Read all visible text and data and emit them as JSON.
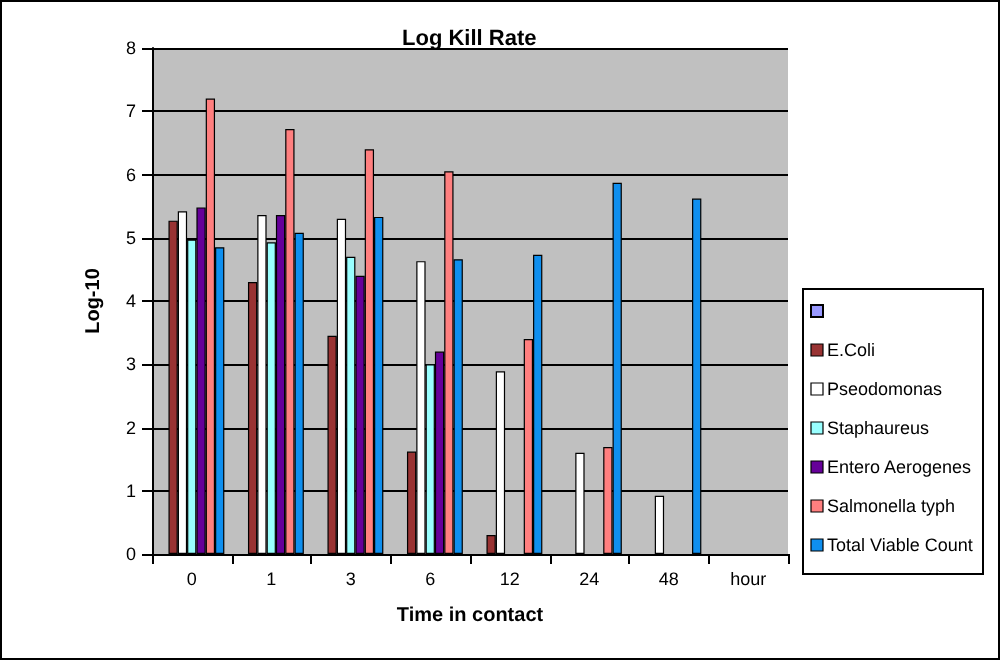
{
  "chart_data": {
    "type": "bar",
    "title": "Log Kill Rate",
    "xlabel": "Time in contact",
    "ylabel": "Log-10",
    "categories": [
      "0",
      "1",
      "3",
      "6",
      "12",
      "24",
      "48",
      "hour"
    ],
    "series": [
      {
        "color": "#9999ff",
        "values": [
          null,
          null,
          null,
          null,
          null,
          null,
          null,
          null
        ]
      },
      {
        "name": "E.Coli",
        "color": "#993333",
        "values": [
          5.27,
          4.3,
          3.45,
          1.62,
          0.3,
          null,
          null,
          null
        ]
      },
      {
        "name": "Pseodomonas",
        "color": "#ffffff",
        "values": [
          5.42,
          5.36,
          5.3,
          4.63,
          2.89,
          1.6,
          0.92,
          null
        ]
      },
      {
        "name": "Staphaureus",
        "color": "#99ffff",
        "values": [
          4.97,
          4.93,
          4.7,
          3.0,
          null,
          null,
          null,
          null
        ]
      },
      {
        "name": "Entero Aerogenes",
        "color": "#660099",
        "values": [
          5.48,
          5.36,
          4.4,
          3.2,
          null,
          null,
          null,
          null
        ]
      },
      {
        "name": "Salmonella typh",
        "color": "#ff7f7f",
        "values": [
          7.2,
          6.72,
          6.4,
          6.05,
          3.4,
          1.69,
          null,
          null
        ]
      },
      {
        "name": "Total Viable Count",
        "color": "#0f8fef",
        "values": [
          4.85,
          5.08,
          5.33,
          4.66,
          4.73,
          5.87,
          5.62,
          null
        ]
      }
    ],
    "ylim": [
      0,
      8
    ],
    "yticks": [
      0,
      1,
      2,
      3,
      4,
      5,
      6,
      7,
      8
    ],
    "grid": "y",
    "legend": "right"
  }
}
